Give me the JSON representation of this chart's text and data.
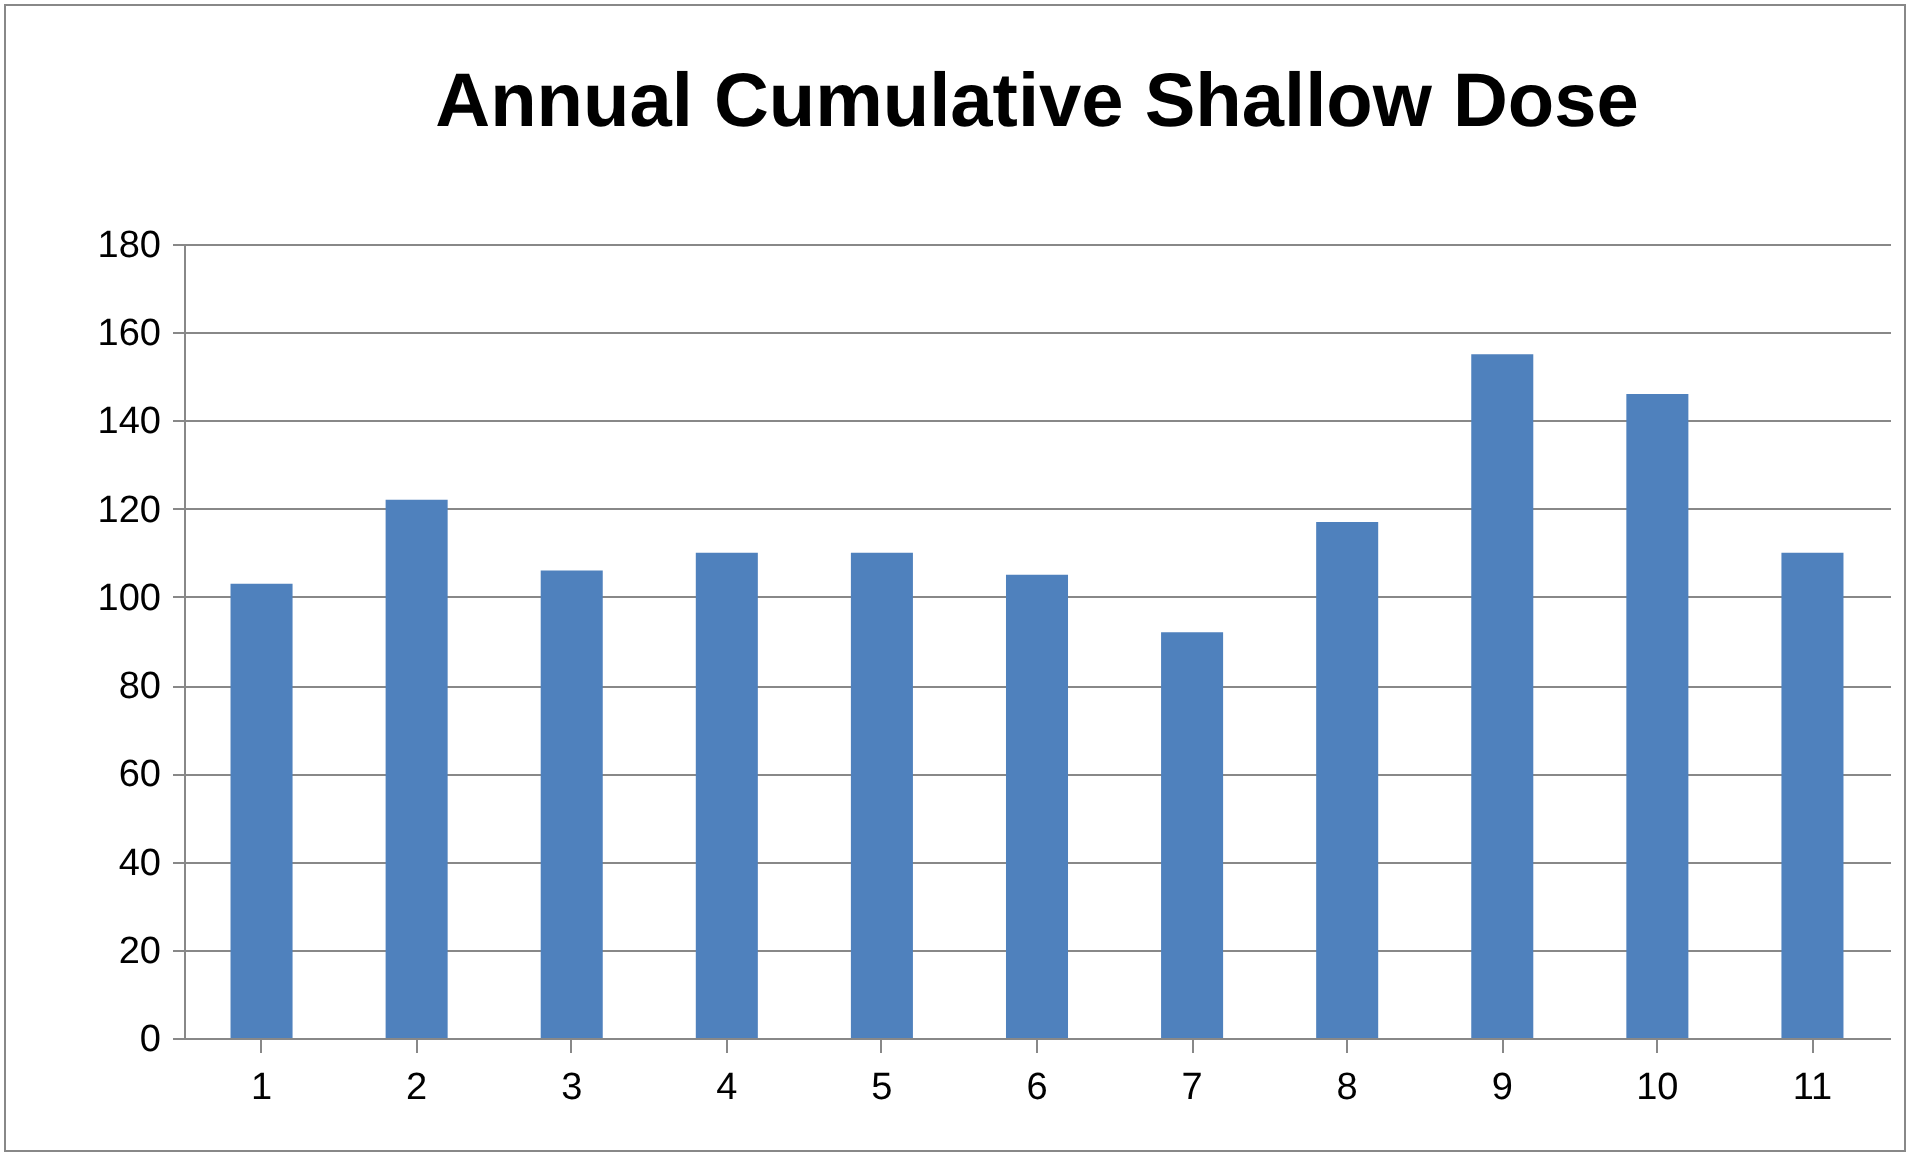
{
  "chart_data": {
    "type": "bar",
    "title": "Annual Cumulative Shallow Dose",
    "categories": [
      "1",
      "2",
      "3",
      "4",
      "5",
      "6",
      "7",
      "8",
      "9",
      "10",
      "11"
    ],
    "values": [
      103,
      122,
      106,
      110,
      110,
      105,
      92,
      117,
      155,
      146,
      110
    ],
    "color": "#4f81bd",
    "ylim": [
      0,
      180
    ],
    "yticks": [
      0,
      20,
      40,
      60,
      80,
      100,
      120,
      140,
      160,
      180
    ],
    "grid": "y"
  }
}
